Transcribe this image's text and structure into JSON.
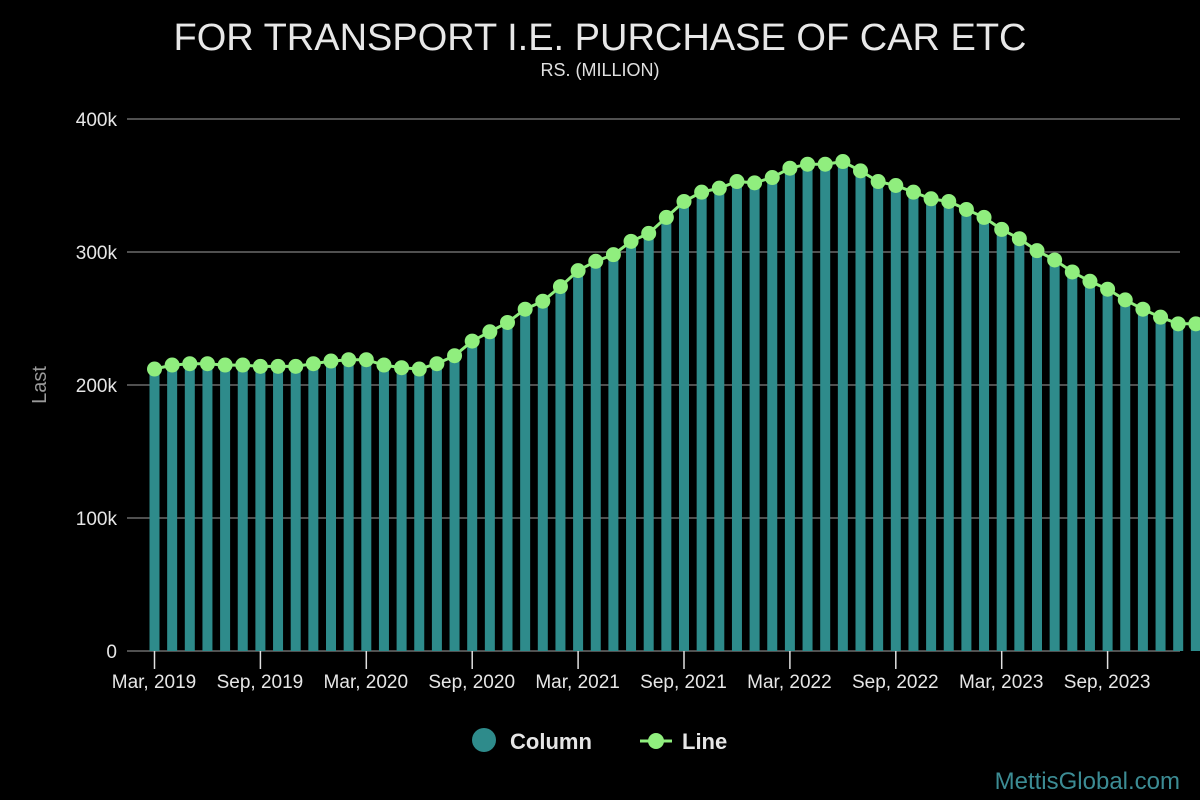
{
  "chart_data": {
    "type": "bar",
    "title": "FOR TRANSPORT I.E. PURCHASE OF CAR ETC",
    "subtitle": "RS. (MILLION)",
    "ylabel": "Last",
    "xlabel": "",
    "ylim": [
      0,
      400000
    ],
    "y_ticks": [
      "0",
      "100k",
      "200k",
      "300k",
      "400k"
    ],
    "x_tick_labels": [
      "Mar, 2019",
      "Sep, 2019",
      "Mar, 2020",
      "Sep, 2020",
      "Mar, 2021",
      "Sep, 2021",
      "Mar, 2022",
      "Sep, 2022",
      "Mar, 2023",
      "Sep, 2023"
    ],
    "grid": true,
    "legend_position": "bottom",
    "categories": [
      "Mar 2019",
      "Apr 2019",
      "May 2019",
      "Jun 2019",
      "Jul 2019",
      "Aug 2019",
      "Sep 2019",
      "Oct 2019",
      "Nov 2019",
      "Dec 2019",
      "Jan 2020",
      "Feb 2020",
      "Mar 2020",
      "Apr 2020",
      "May 2020",
      "Jun 2020",
      "Jul 2020",
      "Aug 2020",
      "Sep 2020",
      "Oct 2020",
      "Nov 2020",
      "Dec 2020",
      "Jan 2021",
      "Feb 2021",
      "Mar 2021",
      "Apr 2021",
      "May 2021",
      "Jun 2021",
      "Jul 2021",
      "Aug 2021",
      "Sep 2021",
      "Oct 2021",
      "Nov 2021",
      "Dec 2021",
      "Jan 2022",
      "Feb 2022",
      "Mar 2022",
      "Apr 2022",
      "May 2022",
      "Jun 2022",
      "Jul 2022",
      "Aug 2022",
      "Sep 2022",
      "Oct 2022",
      "Nov 2022",
      "Dec 2022",
      "Jan 2023",
      "Feb 2023",
      "Mar 2023",
      "Apr 2023",
      "May 2023",
      "Jun 2023",
      "Jul 2023",
      "Aug 2023",
      "Sep 2023",
      "Oct 2023",
      "Nov 2023",
      "Dec 2023",
      "Jan 2024",
      "Feb 2024"
    ],
    "series": [
      {
        "name": "Column",
        "type": "column",
        "color": "#2e8b8b",
        "values": [
          212000,
          215000,
          216000,
          216000,
          215000,
          215000,
          214000,
          214000,
          214000,
          216000,
          218000,
          219000,
          219000,
          215000,
          213000,
          212000,
          216000,
          222000,
          233000,
          240000,
          247000,
          257000,
          263000,
          274000,
          286000,
          293000,
          298000,
          308000,
          314000,
          326000,
          338000,
          345000,
          348000,
          353000,
          352000,
          356000,
          363000,
          366000,
          366000,
          368000,
          361000,
          353000,
          350000,
          345000,
          340000,
          338000,
          332000,
          326000,
          317000,
          310000,
          301000,
          294000,
          285000,
          278000,
          272000,
          264000,
          257000,
          251000,
          246000,
          246000
        ]
      },
      {
        "name": "Line",
        "type": "line",
        "color": "#90ee7e",
        "values": [
          212000,
          215000,
          216000,
          216000,
          215000,
          215000,
          214000,
          214000,
          214000,
          216000,
          218000,
          219000,
          219000,
          215000,
          213000,
          212000,
          216000,
          222000,
          233000,
          240000,
          247000,
          257000,
          263000,
          274000,
          286000,
          293000,
          298000,
          308000,
          314000,
          326000,
          338000,
          345000,
          348000,
          353000,
          352000,
          356000,
          363000,
          366000,
          366000,
          368000,
          361000,
          353000,
          350000,
          345000,
          340000,
          338000,
          332000,
          326000,
          317000,
          310000,
          301000,
          294000,
          285000,
          278000,
          272000,
          264000,
          257000,
          251000,
          246000,
          246000
        ]
      }
    ]
  },
  "credit": "MettisGlobal.com",
  "colors": {
    "background": "#000000",
    "grid": "#6b6b6b",
    "column": "#2e8b8b",
    "line": "#90ee7e",
    "credit": "#3c8c94"
  }
}
